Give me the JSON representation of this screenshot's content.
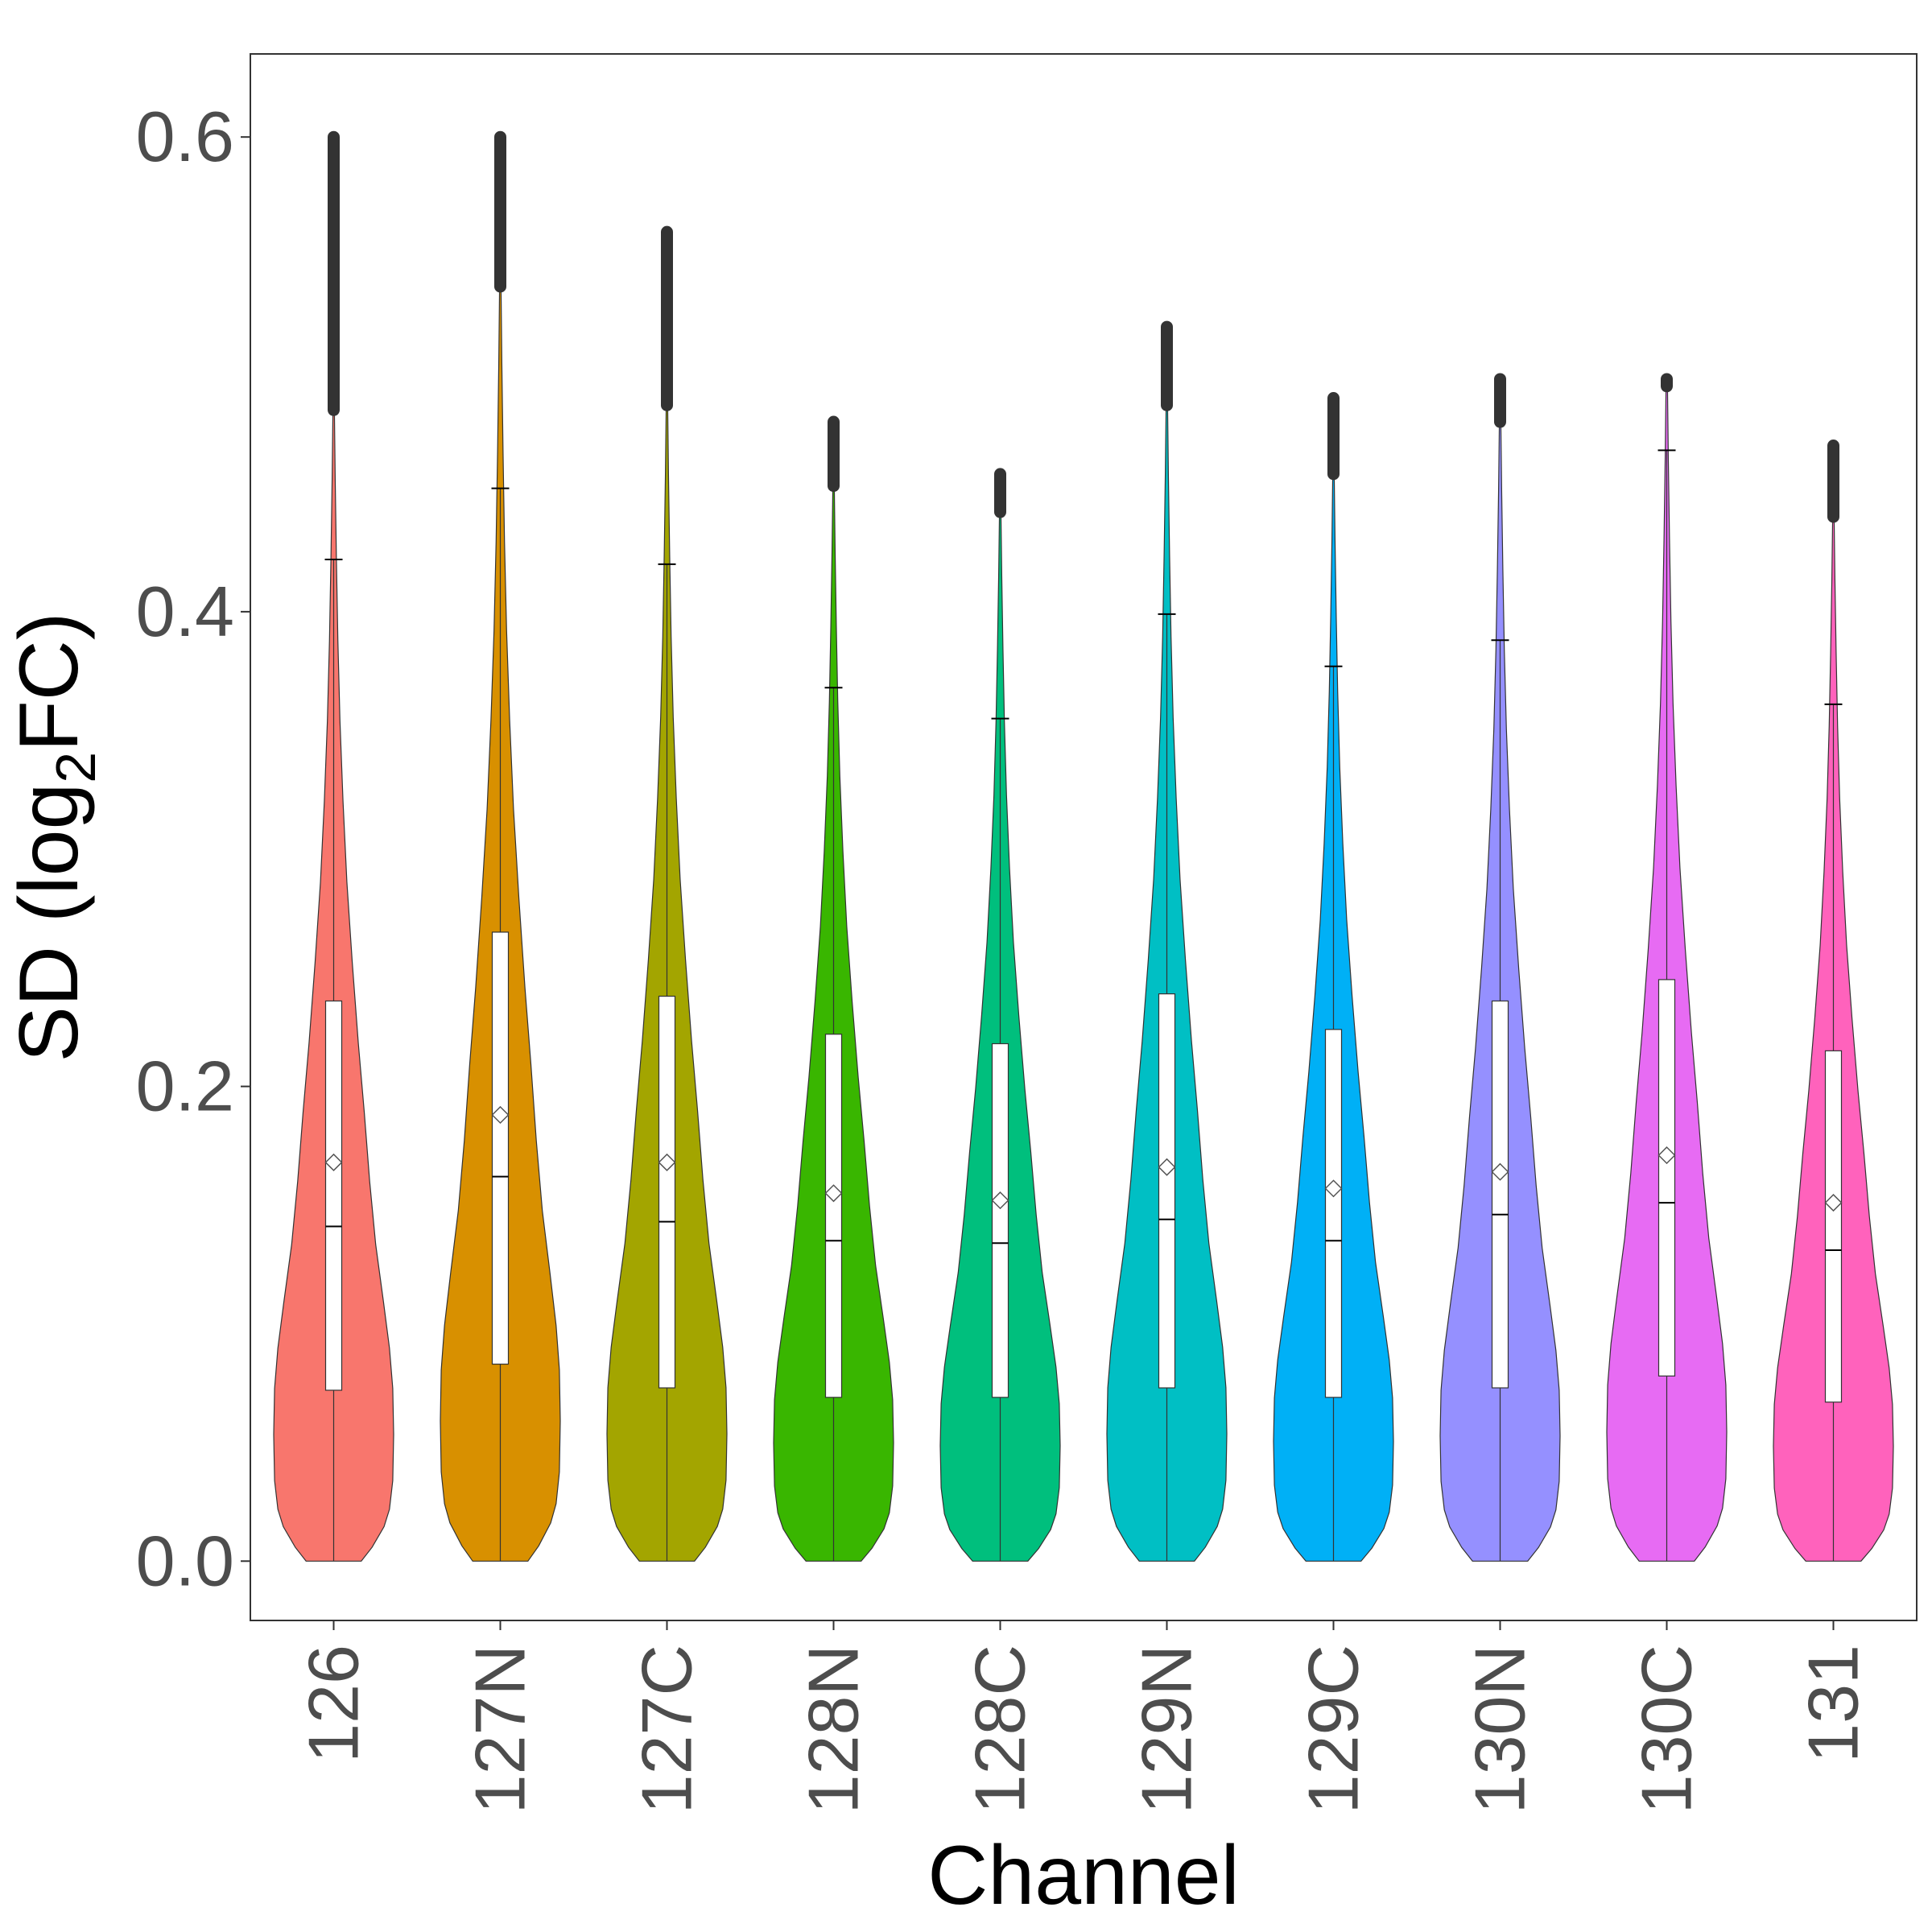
{
  "chart_data": {
    "type": "violin",
    "title": "",
    "xlabel": "Channel",
    "ylabel": {
      "prefix": "SD (log",
      "subscript": "2",
      "suffix": "FC)"
    },
    "ylim": [
      -0.025,
      0.635
    ],
    "yticks": [
      0.0,
      0.2,
      0.4,
      0.6
    ],
    "ytick_labels": [
      "0.0",
      "0.2",
      "0.4",
      "0.6"
    ],
    "grid": false,
    "legend": "none",
    "categories": [
      "126",
      "127N",
      "127C",
      "128N",
      "128C",
      "129N",
      "129C",
      "130N",
      "130C",
      "131"
    ],
    "series": [
      {
        "name": "126",
        "color": "#F8766D",
        "q1": 0.072,
        "median": 0.141,
        "q3": 0.236,
        "mean": 0.168,
        "upper_whisker": 0.422,
        "violin_top": 0.485,
        "outliers_top": 0.6,
        "max_half_width": 0.36
      },
      {
        "name": "127N",
        "color": "#D89000",
        "q1": 0.083,
        "median": 0.162,
        "q3": 0.265,
        "mean": 0.188,
        "upper_whisker": 0.452,
        "violin_top": 0.537,
        "outliers_top": 0.6,
        "max_half_width": 0.36
      },
      {
        "name": "127C",
        "color": "#A3A500",
        "q1": 0.073,
        "median": 0.143,
        "q3": 0.238,
        "mean": 0.168,
        "upper_whisker": 0.42,
        "violin_top": 0.487,
        "outliers_top": 0.56,
        "max_half_width": 0.36
      },
      {
        "name": "128N",
        "color": "#39B600",
        "q1": 0.069,
        "median": 0.135,
        "q3": 0.222,
        "mean": 0.155,
        "upper_whisker": 0.368,
        "violin_top": 0.453,
        "outliers_top": 0.48,
        "max_half_width": 0.36
      },
      {
        "name": "128C",
        "color": "#00BF7D",
        "q1": 0.069,
        "median": 0.134,
        "q3": 0.218,
        "mean": 0.152,
        "upper_whisker": 0.355,
        "violin_top": 0.442,
        "outliers_top": 0.458,
        "max_half_width": 0.36
      },
      {
        "name": "129N",
        "color": "#00BFC4",
        "q1": 0.073,
        "median": 0.144,
        "q3": 0.239,
        "mean": 0.166,
        "upper_whisker": 0.399,
        "violin_top": 0.487,
        "outliers_top": 0.52,
        "max_half_width": 0.36
      },
      {
        "name": "129C",
        "color": "#00B0F6",
        "q1": 0.069,
        "median": 0.135,
        "q3": 0.224,
        "mean": 0.157,
        "upper_whisker": 0.377,
        "violin_top": 0.458,
        "outliers_top": 0.49,
        "max_half_width": 0.36
      },
      {
        "name": "130N",
        "color": "#9590FF",
        "q1": 0.073,
        "median": 0.146,
        "q3": 0.236,
        "mean": 0.164,
        "upper_whisker": 0.388,
        "violin_top": 0.48,
        "outliers_top": 0.498,
        "max_half_width": 0.36
      },
      {
        "name": "130C",
        "color": "#E76BF3",
        "q1": 0.078,
        "median": 0.151,
        "q3": 0.245,
        "mean": 0.171,
        "upper_whisker": 0.468,
        "violin_top": 0.495,
        "outliers_top": 0.498,
        "max_half_width": 0.36
      },
      {
        "name": "131",
        "color": "#FF62BC",
        "q1": 0.067,
        "median": 0.131,
        "q3": 0.215,
        "mean": 0.151,
        "upper_whisker": 0.361,
        "violin_top": 0.44,
        "outliers_top": 0.47,
        "max_half_width": 0.36
      }
    ]
  }
}
